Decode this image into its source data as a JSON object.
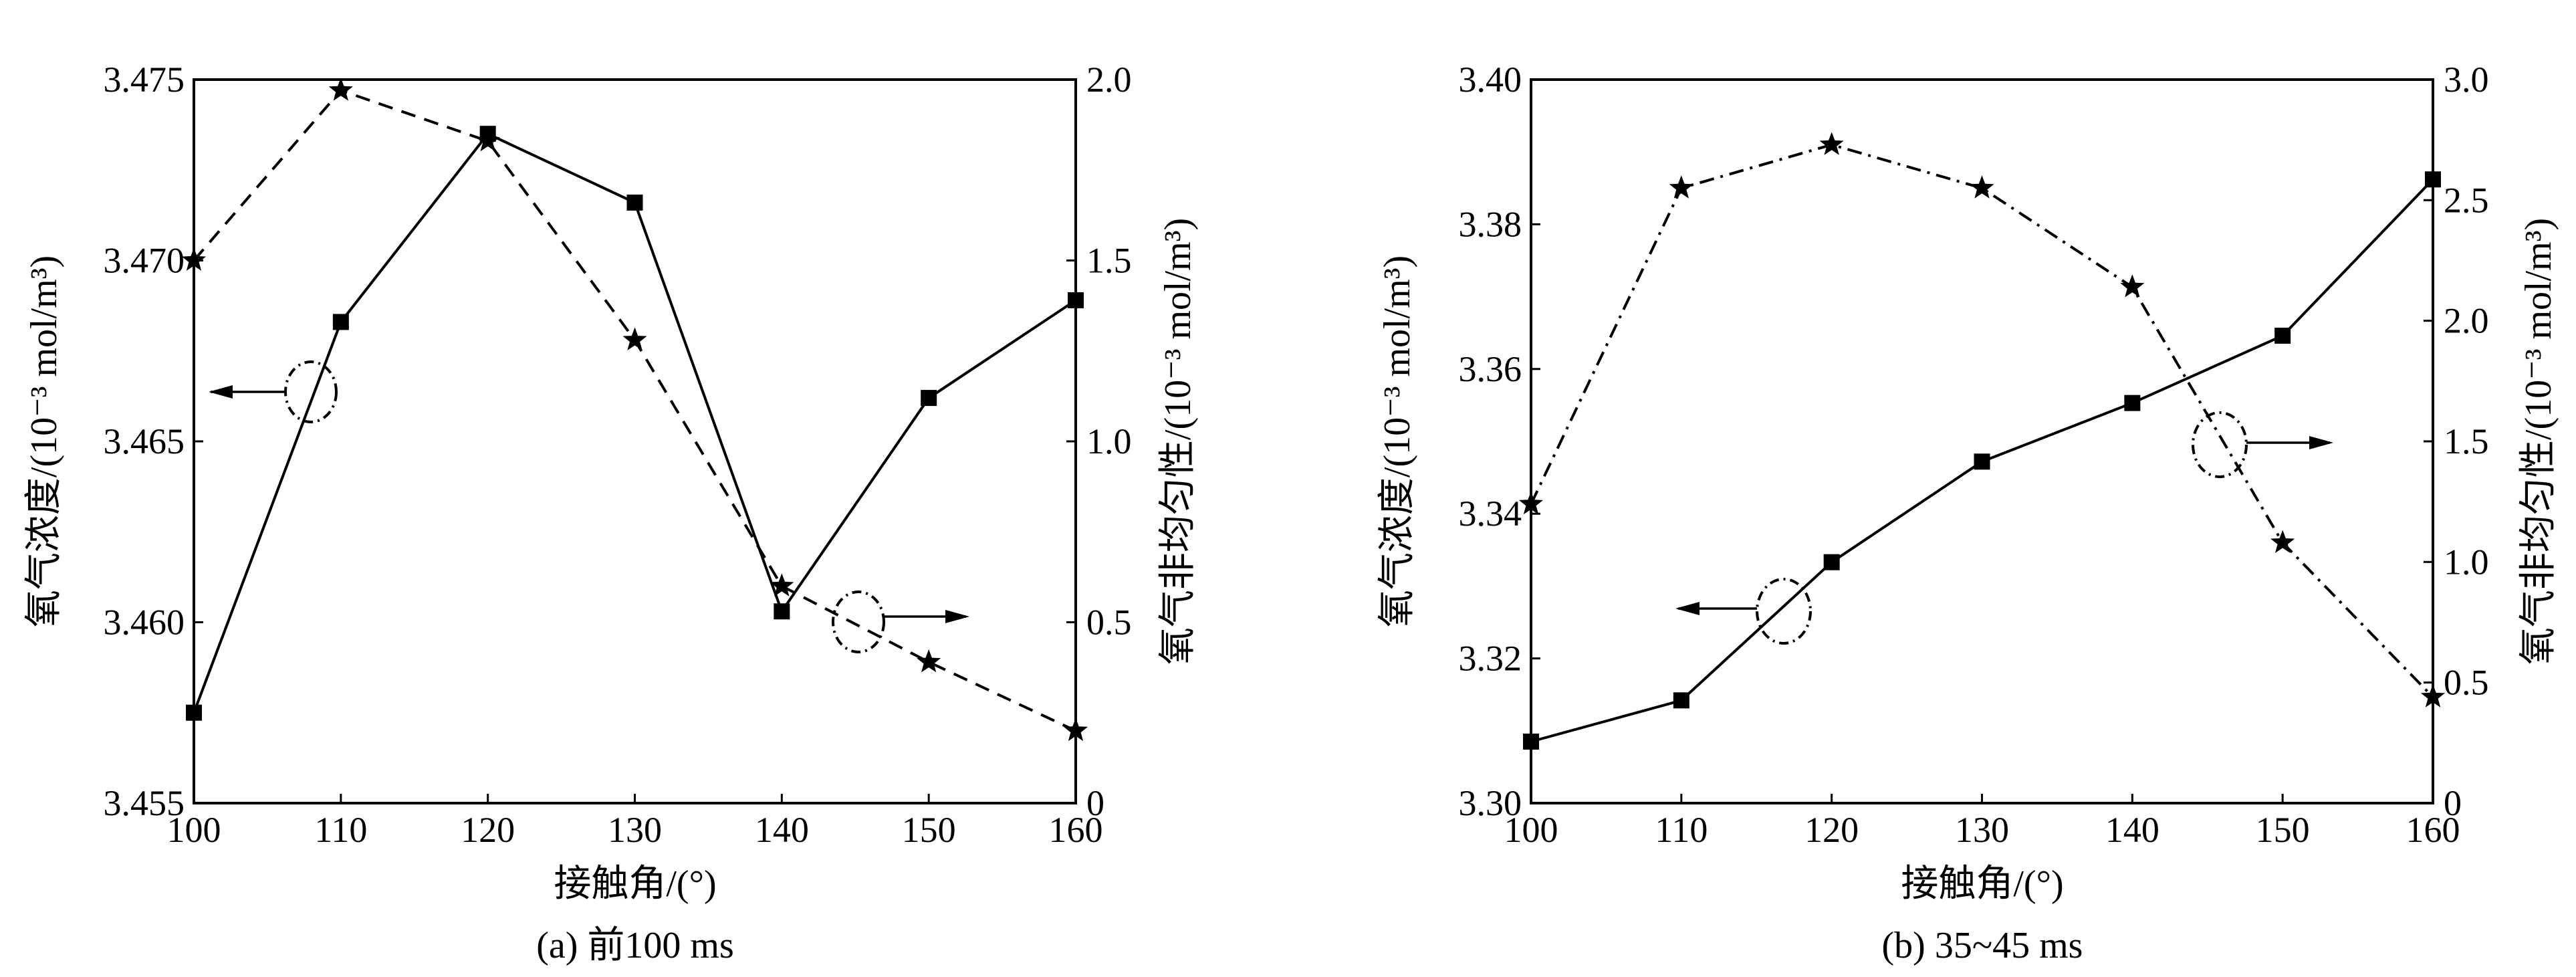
{
  "chart_data": [
    {
      "type": "line",
      "caption": "(a) 前100 ms",
      "xlabel": "接触角/(°)",
      "ylabel": "氧气浓度/(10⁻³ mol/m³)",
      "y2label": "氧气非均匀性/(10⁻³ mol/m³)",
      "x": [
        100,
        110,
        120,
        130,
        140,
        150,
        160
      ],
      "xlim": [
        100,
        160
      ],
      "xticks": [
        "100",
        "110",
        "120",
        "130",
        "140",
        "150",
        "160"
      ],
      "ylim": [
        3.455,
        3.475
      ],
      "yticks": [
        "3.455",
        "3.460",
        "3.465",
        "3.470",
        "3.475"
      ],
      "y2lim": [
        0,
        2.0
      ],
      "y2ticks": [
        "0",
        "0.5",
        "1.0",
        "1.5",
        "2.0"
      ],
      "grid": false,
      "series": [
        {
          "axis": "left",
          "style": "solid",
          "marker": "square",
          "values": [
            3.4575,
            3.4683,
            3.4735,
            3.4716,
            3.4603,
            3.4662,
            3.4689
          ]
        },
        {
          "axis": "right",
          "style": "dashed",
          "marker": "star",
          "values": [
            1.5,
            1.97,
            1.83,
            1.28,
            0.6,
            0.39,
            0.2
          ]
        }
      ]
    },
    {
      "type": "line",
      "caption": "(b) 35~45 ms",
      "xlabel": "接触角/(°)",
      "ylabel": "氧气浓度/(10⁻³ mol/m³)",
      "y2label": "氧气非均匀性/(10⁻³ mol/m³)",
      "x": [
        100,
        110,
        120,
        130,
        140,
        150,
        160
      ],
      "xlim": [
        100,
        160
      ],
      "xticks": [
        "100",
        "110",
        "120",
        "130",
        "140",
        "150",
        "160"
      ],
      "ylim": [
        3.3,
        3.4
      ],
      "yticks": [
        "3.30",
        "3.32",
        "3.34",
        "3.36",
        "3.38",
        "3.40"
      ],
      "y2lim": [
        0,
        3.0
      ],
      "y2ticks": [
        "0",
        "0.5",
        "1.0",
        "1.5",
        "2.0",
        "2.5",
        "3.0"
      ],
      "grid": false,
      "series": [
        {
          "axis": "left",
          "style": "solid",
          "marker": "square",
          "values": [
            3.3085,
            3.3142,
            3.3333,
            3.3472,
            3.3553,
            3.3646,
            3.3862
          ]
        },
        {
          "axis": "right",
          "style": "dashdot",
          "marker": "star",
          "values": [
            1.24,
            2.55,
            2.73,
            2.55,
            2.14,
            1.08,
            0.44
          ]
        }
      ]
    }
  ]
}
